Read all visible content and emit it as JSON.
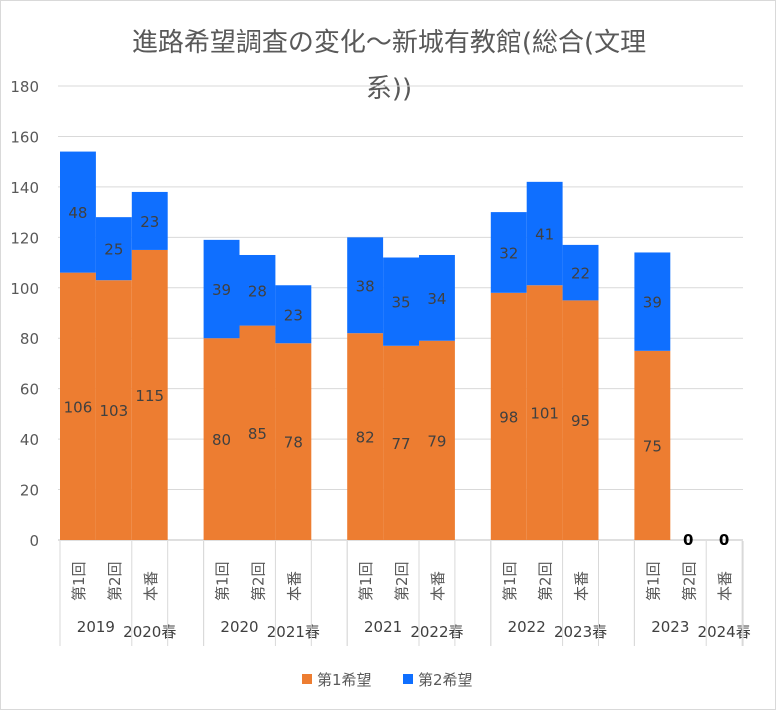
{
  "chart_data": {
    "type": "bar",
    "stacked": true,
    "title": "進路希望調査の変化～新城有教館(総合(文理系))",
    "title_lines": [
      "進路希望調査の変化～新城有教館(総合(文理",
      "系))"
    ],
    "ylim": [
      0,
      180
    ],
    "yticks": [
      0,
      20,
      40,
      60,
      80,
      100,
      120,
      140,
      160,
      180
    ],
    "grid": true,
    "legend": "bottom",
    "groups": [
      {
        "labels": [
          "2019",
          "2020春"
        ],
        "categories": [
          "第1回",
          "第2回",
          "本番"
        ]
      },
      {
        "labels": [
          "2020",
          "2021春"
        ],
        "categories": [
          "第1回",
          "第2回",
          "本番"
        ]
      },
      {
        "labels": [
          "2021",
          "2022春"
        ],
        "categories": [
          "第1回",
          "第2回",
          "本番"
        ]
      },
      {
        "labels": [
          "2022",
          "2023春"
        ],
        "categories": [
          "第1回",
          "第2回",
          "本番"
        ]
      },
      {
        "labels": [
          "2023",
          "2024春"
        ],
        "categories": [
          "第1回",
          "第2回",
          "本番"
        ]
      }
    ],
    "series": [
      {
        "name": "第1希望",
        "color": "#ED7D31",
        "values": [
          [
            106,
            103,
            115
          ],
          [
            80,
            85,
            78
          ],
          [
            82,
            77,
            79
          ],
          [
            98,
            101,
            95
          ],
          [
            75,
            0,
            0
          ]
        ]
      },
      {
        "name": "第2希望",
        "color": "#0F6FFF",
        "values": [
          [
            48,
            25,
            23
          ],
          [
            39,
            28,
            23
          ],
          [
            38,
            35,
            34
          ],
          [
            32,
            41,
            22
          ],
          [
            39,
            0,
            0
          ]
        ]
      }
    ]
  }
}
